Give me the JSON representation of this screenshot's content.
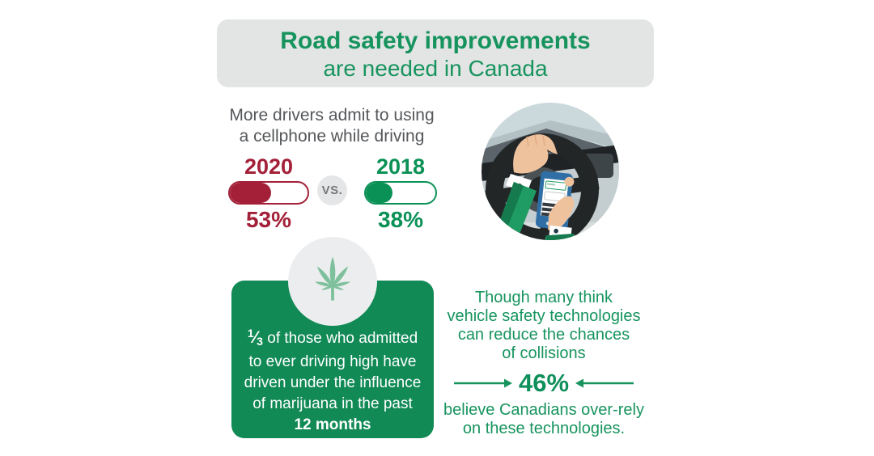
{
  "colors": {
    "brand_green": "#17945e",
    "stat_green": "#0a9156",
    "stat_red": "#a32038",
    "box_green": "#118a56",
    "header_gray": "#e3e5e4",
    "text_gray": "#55575a",
    "leaf_green": "#7ec09b"
  },
  "header": {
    "title_line1": "Road safety improvements",
    "title_line2": "are needed in Canada"
  },
  "cellphone_stats": {
    "heading_line1": "More drivers admit to using",
    "heading_line2": "a cellphone while driving",
    "vs_label": "VS.",
    "items": [
      {
        "year": "2020",
        "value": "53%",
        "percent": 53,
        "color": "#a32038"
      },
      {
        "year": "2018",
        "value": "38%",
        "percent": 38,
        "color": "#0a9156"
      }
    ]
  },
  "marijuana_stat": {
    "fraction": {
      "numerator": "1",
      "slash": "⁄",
      "denominator": "3"
    },
    "line1_rest": " of those who admitted",
    "lines": [
      "to ever driving high have",
      "driven under the influence",
      "of marijuana in the past"
    ],
    "bold_line": "12 months"
  },
  "technology_stat": {
    "lines_top": [
      "Though many think",
      "vehicle safety technologies",
      "can reduce the chances",
      "of collisions"
    ],
    "value": "46%",
    "lines_bottom": [
      "believe Canadians over-rely",
      "on these technologies."
    ]
  },
  "chart_data": {
    "type": "bar",
    "title": "More drivers admit to using a cellphone while driving",
    "categories": [
      "2020",
      "2018"
    ],
    "values": [
      53,
      38
    ],
    "unit": "%",
    "colors": [
      "#a32038",
      "#0a9156"
    ],
    "legend_position": "none",
    "related_stats": [
      {
        "value": "1/3",
        "description": "of those who admitted to ever driving high have driven under the influence of marijuana in the past 12 months"
      },
      {
        "value": "46%",
        "description": "believe Canadians over-rely on these technologies, though many think vehicle safety technologies can reduce the chances of collisions"
      }
    ]
  }
}
